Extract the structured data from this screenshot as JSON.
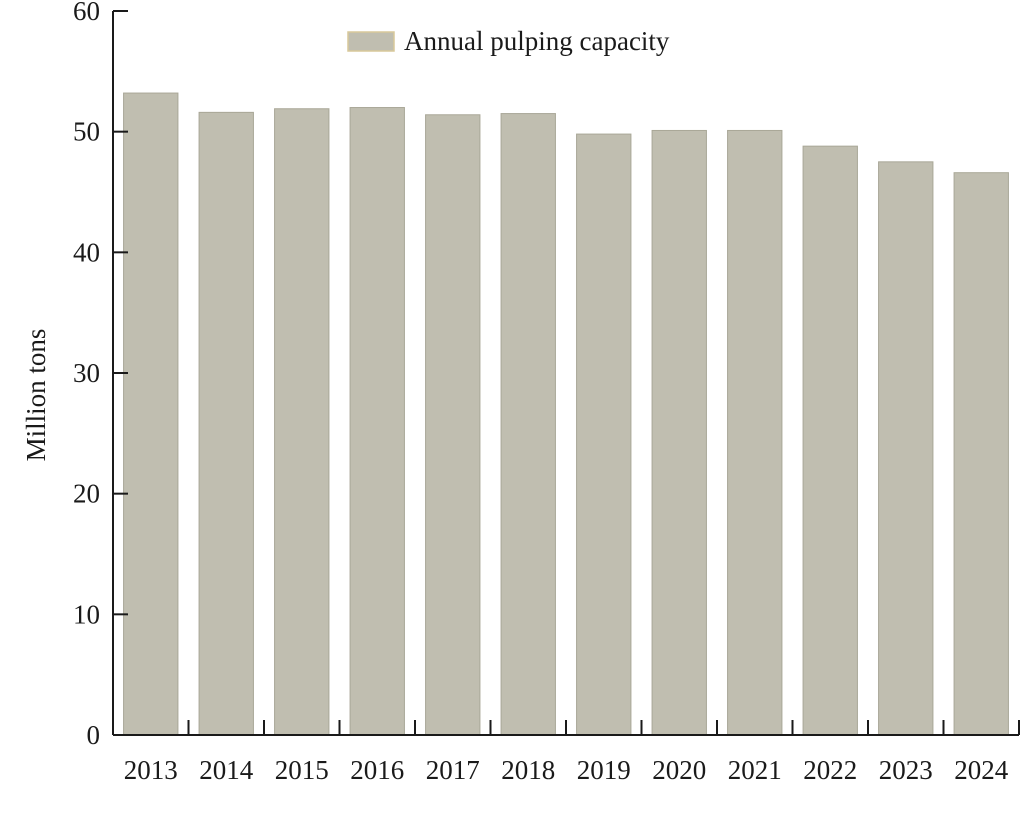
{
  "chart_data": {
    "type": "bar",
    "title": "",
    "xlabel": "",
    "ylabel": "Million tons",
    "ylim": [
      0,
      60
    ],
    "yticks": [
      0,
      10,
      20,
      30,
      40,
      50,
      60
    ],
    "categories": [
      "2013",
      "2014",
      "2015",
      "2016",
      "2017",
      "2018",
      "2019",
      "2020",
      "2021",
      "2022",
      "2023",
      "2024"
    ],
    "series": [
      {
        "name": "Annual pulping capacity",
        "values": [
          53.2,
          51.6,
          51.9,
          52.0,
          51.4,
          51.5,
          49.8,
          50.1,
          50.1,
          48.8,
          47.5,
          46.6
        ]
      }
    ],
    "legend_position": "top-center",
    "colors": {
      "bar_fill": "#c0beb0",
      "bar_stroke": "#a9a797",
      "legend_border": "#d8c89a",
      "axis": "#1a1a1a"
    }
  }
}
